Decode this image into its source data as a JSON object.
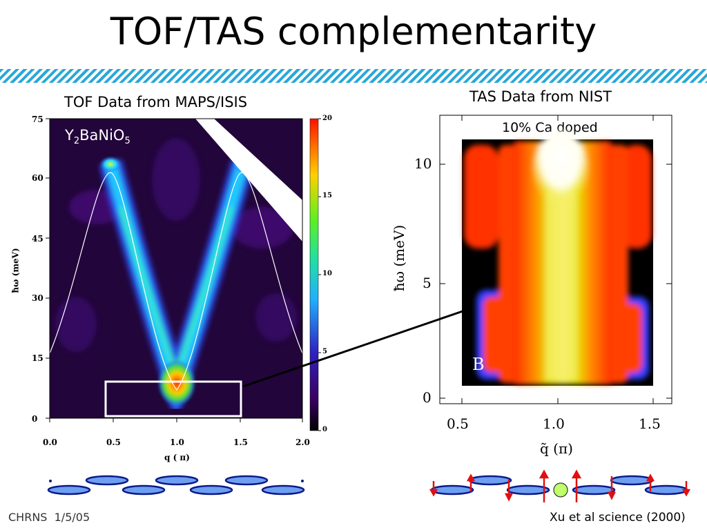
{
  "title": "TOF/TAS complementarity",
  "tof": {
    "caption": "TOF Data from MAPS/ISIS",
    "compound_base1": "Y",
    "compound_sub1": "2",
    "compound_base2": "BaNiO",
    "compound_sub2": "5",
    "ylabel": "ħω (meV)",
    "xlabel": "q ( π)",
    "xticks": [
      "0.0",
      "0.5",
      "1.0",
      "1.5",
      "2.0"
    ],
    "yticks": [
      "0",
      "15",
      "30",
      "45",
      "60",
      "75"
    ],
    "colorbar_ticks": [
      "0",
      "5",
      "10",
      "15",
      "20"
    ]
  },
  "tas": {
    "caption": "TAS Data from NIST",
    "subtitle": "10% Ca doped",
    "panel_label": "B",
    "ylabel": "ħω (meV)",
    "xlabel": "q̃ (π)",
    "xticks": [
      "0.5",
      "1.0",
      "1.5"
    ],
    "yticks": [
      "0",
      "5",
      "10"
    ]
  },
  "footer": {
    "org": "CHRNS",
    "date": "1/5/05",
    "credit": "Xu et al science (2000)"
  }
}
